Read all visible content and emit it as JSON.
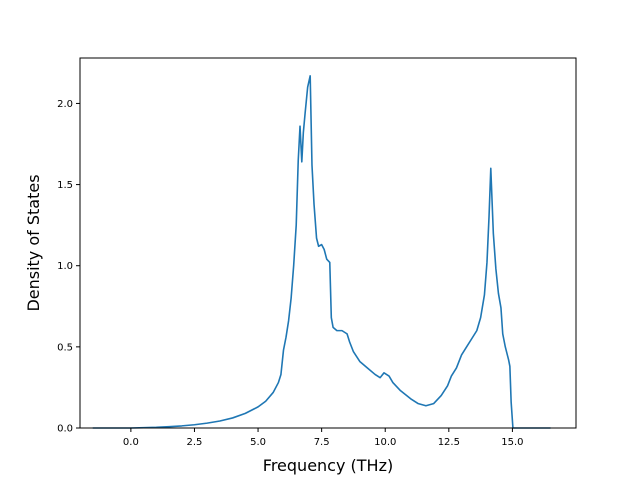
{
  "chart_data": {
    "type": "line",
    "title": "",
    "xlabel": "Frequency (THz)",
    "ylabel": "Density of States",
    "xlim": [
      -2.0,
      17.5
    ],
    "ylim": [
      0.0,
      2.28
    ],
    "grid": false,
    "legend": "none",
    "line_color": "#1f77b4",
    "xticks": [
      {
        "value": 0.0,
        "label": "0.0"
      },
      {
        "value": 2.5,
        "label": "2.5"
      },
      {
        "value": 5.0,
        "label": "5.0"
      },
      {
        "value": 7.5,
        "label": "7.5"
      },
      {
        "value": 10.0,
        "label": "10.0"
      },
      {
        "value": 12.5,
        "label": "12.5"
      },
      {
        "value": 15.0,
        "label": "15.0"
      }
    ],
    "yticks": [
      {
        "value": 0.0,
        "label": "0.0"
      },
      {
        "value": 0.5,
        "label": "0.5"
      },
      {
        "value": 1.0,
        "label": "1.0"
      },
      {
        "value": 1.5,
        "label": "1.5"
      },
      {
        "value": 2.0,
        "label": "2.0"
      }
    ],
    "series": [
      {
        "points": [
          [
            -1.5,
            0.0
          ],
          [
            0.0,
            0.0
          ],
          [
            0.5,
            0.002
          ],
          [
            1.0,
            0.004
          ],
          [
            1.5,
            0.008
          ],
          [
            2.0,
            0.013
          ],
          [
            2.5,
            0.02
          ],
          [
            3.0,
            0.03
          ],
          [
            3.5,
            0.043
          ],
          [
            4.0,
            0.062
          ],
          [
            4.5,
            0.09
          ],
          [
            5.0,
            0.13
          ],
          [
            5.3,
            0.165
          ],
          [
            5.6,
            0.22
          ],
          [
            5.8,
            0.28
          ],
          [
            5.9,
            0.33
          ],
          [
            6.0,
            0.48
          ],
          [
            6.1,
            0.56
          ],
          [
            6.2,
            0.66
          ],
          [
            6.3,
            0.8
          ],
          [
            6.4,
            1.0
          ],
          [
            6.5,
            1.25
          ],
          [
            6.58,
            1.65
          ],
          [
            6.65,
            1.86
          ],
          [
            6.72,
            1.64
          ],
          [
            6.78,
            1.82
          ],
          [
            6.85,
            1.94
          ],
          [
            6.95,
            2.1
          ],
          [
            7.05,
            2.17
          ],
          [
            7.12,
            1.62
          ],
          [
            7.2,
            1.38
          ],
          [
            7.3,
            1.17
          ],
          [
            7.38,
            1.12
          ],
          [
            7.5,
            1.13
          ],
          [
            7.6,
            1.1
          ],
          [
            7.7,
            1.04
          ],
          [
            7.82,
            1.02
          ],
          [
            7.88,
            0.68
          ],
          [
            7.95,
            0.62
          ],
          [
            8.1,
            0.6
          ],
          [
            8.3,
            0.6
          ],
          [
            8.5,
            0.58
          ],
          [
            8.6,
            0.53
          ],
          [
            8.75,
            0.47
          ],
          [
            9.0,
            0.41
          ],
          [
            9.3,
            0.37
          ],
          [
            9.6,
            0.33
          ],
          [
            9.8,
            0.31
          ],
          [
            9.95,
            0.34
          ],
          [
            10.05,
            0.33
          ],
          [
            10.15,
            0.32
          ],
          [
            10.3,
            0.28
          ],
          [
            10.6,
            0.23
          ],
          [
            11.0,
            0.18
          ],
          [
            11.3,
            0.15
          ],
          [
            11.6,
            0.137
          ],
          [
            11.9,
            0.15
          ],
          [
            12.2,
            0.2
          ],
          [
            12.45,
            0.26
          ],
          [
            12.6,
            0.32
          ],
          [
            12.8,
            0.37
          ],
          [
            13.0,
            0.45
          ],
          [
            13.2,
            0.5
          ],
          [
            13.4,
            0.55
          ],
          [
            13.6,
            0.6
          ],
          [
            13.75,
            0.68
          ],
          [
            13.9,
            0.82
          ],
          [
            14.0,
            1.02
          ],
          [
            14.08,
            1.3
          ],
          [
            14.15,
            1.6
          ],
          [
            14.25,
            1.2
          ],
          [
            14.35,
            0.98
          ],
          [
            14.45,
            0.83
          ],
          [
            14.55,
            0.74
          ],
          [
            14.62,
            0.58
          ],
          [
            14.72,
            0.5
          ],
          [
            14.85,
            0.42
          ],
          [
            14.9,
            0.38
          ],
          [
            14.95,
            0.16
          ],
          [
            15.02,
            0.0
          ],
          [
            15.5,
            0.0
          ],
          [
            16.5,
            0.0
          ]
        ]
      }
    ]
  }
}
